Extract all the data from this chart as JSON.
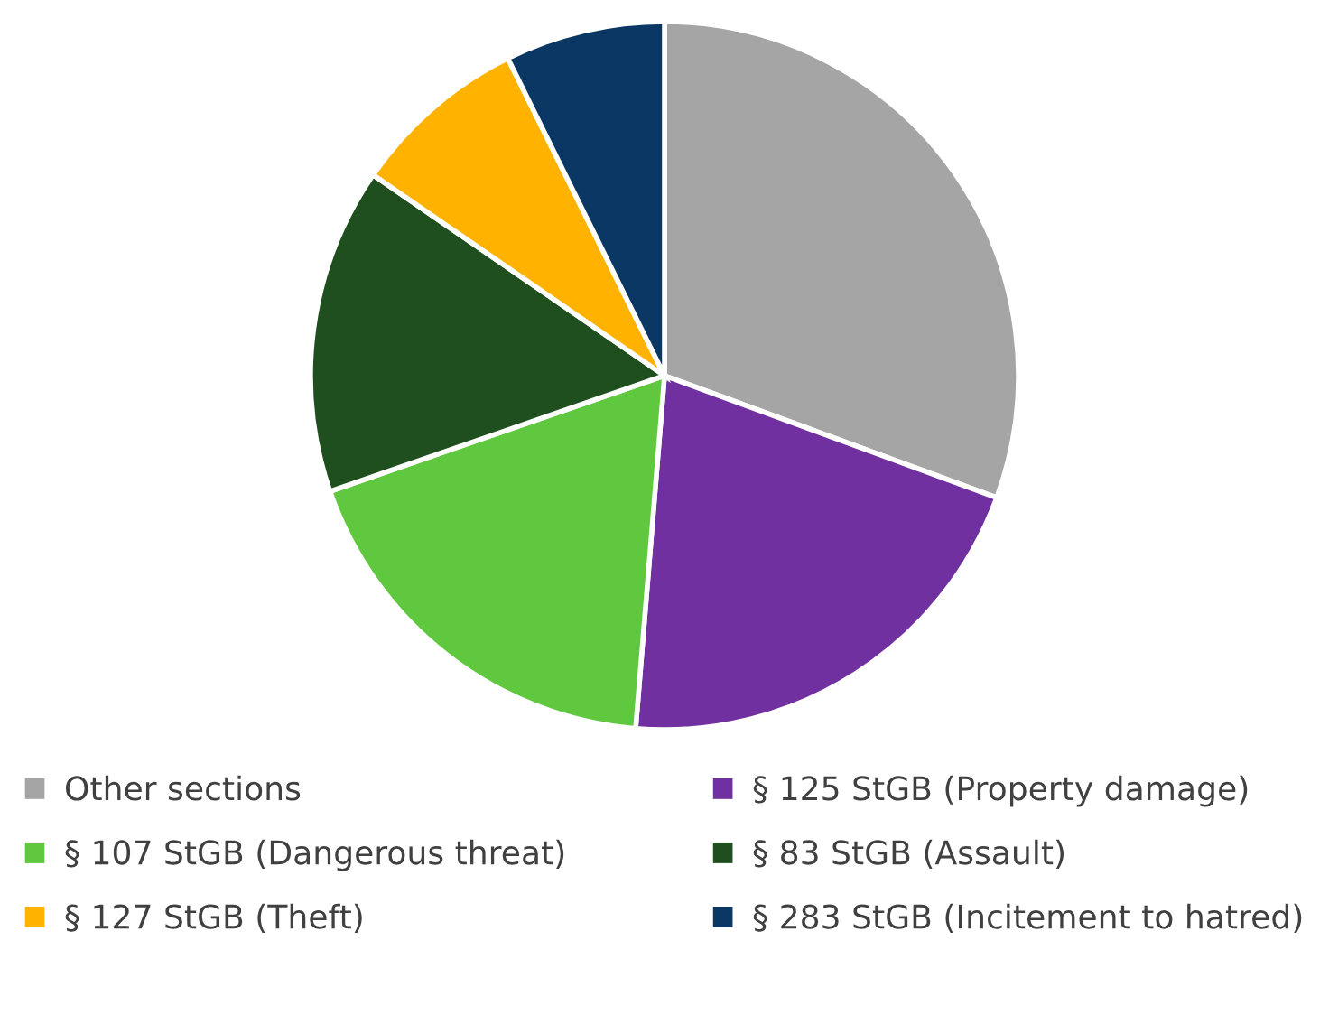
{
  "chart_data": {
    "type": "pie",
    "categories": [
      "Other sections",
      "§ 125 StGB (Property damage)",
      "§ 107 StGB (Dangerous threat)",
      "§ 83 StGB (Assault)",
      "§ 127 StGB (Theft)",
      "§ 283 StGB (Incitement to hatred)"
    ],
    "values": [
      30.6,
      20.7,
      18.4,
      14.9,
      8.1,
      7.3
    ],
    "colors": [
      "#a5a5a5",
      "#7030a0",
      "#5fc83f",
      "#1f4f1f",
      "#ffb300",
      "#0a3763"
    ],
    "legend": "bottom"
  }
}
